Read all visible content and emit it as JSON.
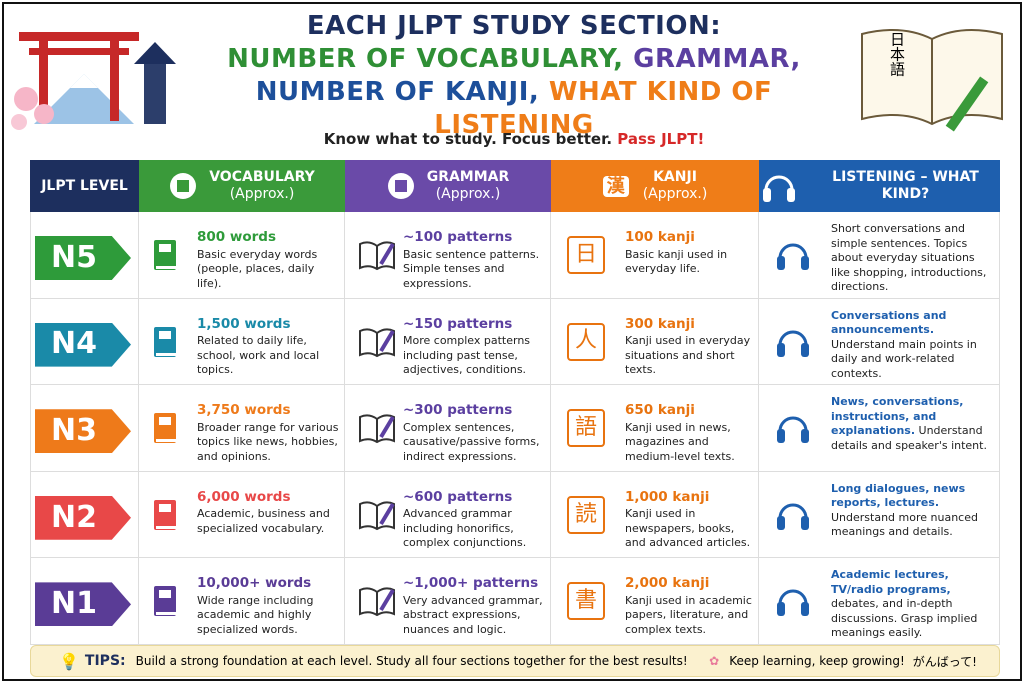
{
  "header": {
    "title_lines": [
      [
        {
          "text": "EACH JLPT STUDY SECTION:",
          "color": "#1d2f5e"
        }
      ],
      [
        {
          "text": "NUMBER OF VOCABULARY,",
          "color": "#2f8f35"
        },
        {
          "text": " GRAMMAR,",
          "color": "#5b3fa0"
        }
      ],
      [
        {
          "text": "NUMBER OF KANJI,",
          "color": "#1d4f9a"
        },
        {
          "text": " WHAT KIND OF LISTENING",
          "color": "#ef7d18"
        }
      ]
    ],
    "subtitle": "Know what to study. Focus better.",
    "subtitle_accent": "Pass JLPT!",
    "book_text": "日本語"
  },
  "columns": [
    {
      "title": "JLPT LEVEL",
      "color": "#1d2f5e"
    },
    {
      "title": "VOCABULARY",
      "sub": "(Approx.)",
      "color": "#3a9a3a"
    },
    {
      "title": "GRAMMAR",
      "sub": "(Approx.)",
      "color": "#6a4aa8"
    },
    {
      "title": "KANJI",
      "sub": "(Approx.)",
      "color": "#ef7d18",
      "icon_char": "漢"
    },
    {
      "title": "LISTENING – WHAT KIND?",
      "color": "#1e5fae"
    }
  ],
  "rows": [
    {
      "level": "N5",
      "color": "#2e9b3a",
      "vocab": "800 words",
      "vocab_desc": "Basic everyday words (people, places, daily life).",
      "grammar": "~100 patterns",
      "grammar_desc": "Basic sentence patterns. Simple tenses and expressions.",
      "kanji_char": "日",
      "kanji": "100 kanji",
      "kanji_desc": "Basic kanji used in everyday life.",
      "listening": [
        {
          "text": "Short conversations and simple sentences. Topics about everyday situations like shopping, introductions, directions.",
          "bold": false
        }
      ]
    },
    {
      "level": "N4",
      "color": "#1a8aa8",
      "vocab": "1,500 words",
      "vocab_desc": "Related to daily life, school, work and local topics.",
      "grammar": "~150 patterns",
      "grammar_desc": "More complex patterns including past tense, adjectives, conditions.",
      "kanji_char": "人",
      "kanji": "300 kanji",
      "kanji_desc": "Kanji used in everyday situations and short texts.",
      "listening": [
        {
          "text": "Conversations and announcements.",
          "bold": true
        },
        {
          "text": " Understand main points in daily and work-related contexts.",
          "bold": false
        }
      ]
    },
    {
      "level": "N3",
      "color": "#ee7a1a",
      "vocab": "3,750 words",
      "vocab_desc": "Broader range for various topics like news, hobbies, and opinions.",
      "grammar": "~300 patterns",
      "grammar_desc": "Complex sentences, causative/passive forms, indirect expressions.",
      "kanji_char": "語",
      "kanji": "650 kanji",
      "kanji_desc": "Kanji used in news, magazines and medium-level texts.",
      "listening": [
        {
          "text": "News, conversations, instructions, and explanations.",
          "bold": true
        },
        {
          "text": " Understand details and speaker's intent.",
          "bold": false
        }
      ]
    },
    {
      "level": "N2",
      "color": "#e84848",
      "vocab": "6,000 words",
      "vocab_desc": "Academic, business and specialized vocabulary.",
      "grammar": "~600 patterns",
      "grammar_desc": "Advanced grammar including honorifics, complex conjunctions.",
      "kanji_char": "読",
      "kanji": "1,000 kanji",
      "kanji_desc": "Kanji used in newspapers, books, and advanced articles.",
      "listening": [
        {
          "text": "Long dialogues, news reports, lectures.",
          "bold": true
        },
        {
          "text": " Understand more nuanced meanings and details.",
          "bold": false
        }
      ]
    },
    {
      "level": "N1",
      "color": "#5a3c96",
      "vocab": "10,000+ words",
      "vocab_desc": "Wide range including academic and highly specialized words.",
      "grammar": "~1,000+ patterns",
      "grammar_desc": "Very advanced grammar, abstract expressions, nuances and logic.",
      "kanji_char": "書",
      "kanji": "2,000 kanji",
      "kanji_desc": "Kanji used in academic papers, literature, and complex texts.",
      "listening": [
        {
          "text": "Academic lectures, TV/radio programs,",
          "bold": true
        },
        {
          "text": " debates, and in-depth discussions. Grasp implied meanings easily.",
          "bold": false
        }
      ]
    }
  ],
  "grammar_color": "#5b3fa0",
  "kanji_color": "#e8730f",
  "listen_color": "#1e5fae",
  "tips": {
    "label": "TIPS:",
    "text": "Build a strong foundation at each level. Study all four sections together for the best results!",
    "closing": "Keep learning, keep growing!",
    "cheer": "がんばって!"
  }
}
